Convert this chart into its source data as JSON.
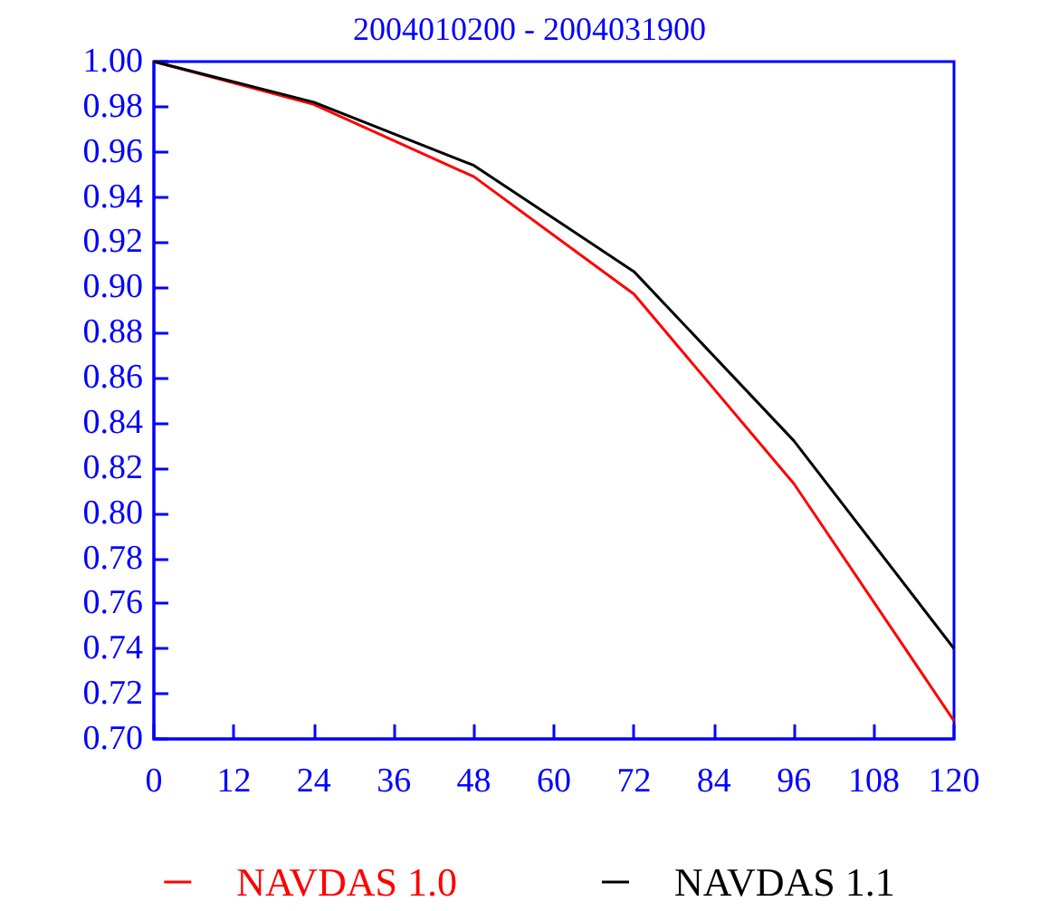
{
  "chart_data": {
    "type": "line",
    "title": "2004010200 - 2004031900",
    "x": [
      0,
      24,
      48,
      72,
      96,
      120
    ],
    "series": [
      {
        "name": "NAVDAS 1.0",
        "color": "#ff0000",
        "values": [
          1.0,
          0.981,
          0.949,
          0.897,
          0.813,
          0.708
        ]
      },
      {
        "name": "NAVDAS 1.1",
        "color": "#000000",
        "values": [
          1.0,
          0.982,
          0.954,
          0.907,
          0.832,
          0.74
        ]
      }
    ],
    "xlim": [
      0,
      120
    ],
    "xticks": [
      0,
      12,
      24,
      36,
      48,
      60,
      72,
      84,
      96,
      108,
      120
    ],
    "ylim": [
      0.7,
      1.0
    ],
    "yticks": [
      {
        "value": 0.7,
        "label": "0.70"
      },
      {
        "value": 0.72,
        "label": "0.72"
      },
      {
        "value": 0.74,
        "label": "0.74"
      },
      {
        "value": 0.76,
        "label": "0.76"
      },
      {
        "value": 0.78,
        "label": "0.78"
      },
      {
        "value": 0.8,
        "label": "0.80"
      },
      {
        "value": 0.82,
        "label": "0.82"
      },
      {
        "value": 0.84,
        "label": "0.84"
      },
      {
        "value": 0.86,
        "label": "0.86"
      },
      {
        "value": 0.88,
        "label": "0.88"
      },
      {
        "value": 0.9,
        "label": "0.90"
      },
      {
        "value": 0.92,
        "label": "0.92"
      },
      {
        "value": 0.94,
        "label": "0.94"
      },
      {
        "value": 0.96,
        "label": "0.96"
      },
      {
        "value": 0.98,
        "label": "0.98"
      },
      {
        "value": 1.0,
        "label": "1.00"
      }
    ],
    "grid": false,
    "legend": "bottom",
    "marker": "none",
    "line_style": "solid"
  }
}
